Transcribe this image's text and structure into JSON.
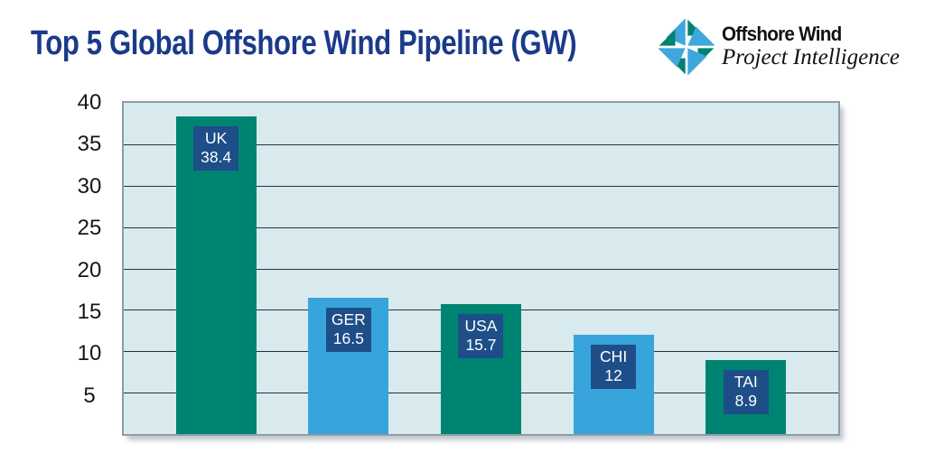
{
  "title": {
    "text": "Top 5 Global Offshore Wind Pipeline (GW)"
  },
  "logo": {
    "name": "Offshore Wind",
    "tagline": "Project Intelligence"
  },
  "chart_data": {
    "type": "bar",
    "title": "Top 5 Global Offshore Wind Pipeline (GW)",
    "categories": [
      "UK",
      "GER",
      "USA",
      "CHI",
      "TAI"
    ],
    "values": [
      38.4,
      16.5,
      15.7,
      12,
      8.9
    ],
    "value_labels": [
      "38.4",
      "16.5",
      "15.7",
      "12",
      "8.9"
    ],
    "bar_colors": [
      "teal",
      "blue",
      "teal",
      "blue",
      "teal"
    ],
    "xlabel": "",
    "ylabel": "",
    "ylim": [
      0,
      40
    ],
    "yticks": [
      40,
      35,
      30,
      25,
      20,
      15,
      10,
      5
    ],
    "grid": true,
    "legend": false
  },
  "colors": {
    "title_text": "#1a3a8a",
    "bar_teal": "#008472",
    "bar_blue": "#38a4dc",
    "label_box": "#1d4e88",
    "label_text": "#ffffff",
    "plot_bg": "#d8eaee",
    "grid_line": "#25313c",
    "frame_border": "#8e9da4",
    "logo_blue": "#3fa7dc",
    "logo_teal": "#00826f"
  }
}
